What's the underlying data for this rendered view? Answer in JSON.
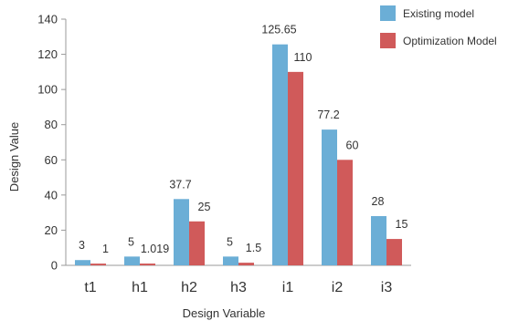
{
  "chart_data": {
    "type": "bar",
    "categories": [
      "t1",
      "h1",
      "h2",
      "h3",
      "i1",
      "i2",
      "i3"
    ],
    "series": [
      {
        "name": "Existing model",
        "color": "#6BAED6",
        "values": [
          3,
          5,
          37.7,
          5,
          125.65,
          77.2,
          28
        ],
        "labels": [
          "3",
          "5",
          "37.7",
          "5",
          "125.65",
          "77.2",
          "28"
        ]
      },
      {
        "name": "Optimization Model",
        "color": "#D05A5A",
        "values": [
          1,
          1.019,
          25,
          1.5,
          110,
          60,
          15
        ],
        "labels": [
          "1",
          "1.019",
          "25",
          "1.5",
          "110",
          "60",
          "15"
        ]
      }
    ],
    "xlabel": "Design Variable",
    "ylabel": "Design Value",
    "ylim": [
      0,
      140
    ],
    "yticks": [
      0,
      20,
      40,
      60,
      80,
      100,
      120,
      140
    ],
    "grid": false,
    "legend": "top-right"
  }
}
